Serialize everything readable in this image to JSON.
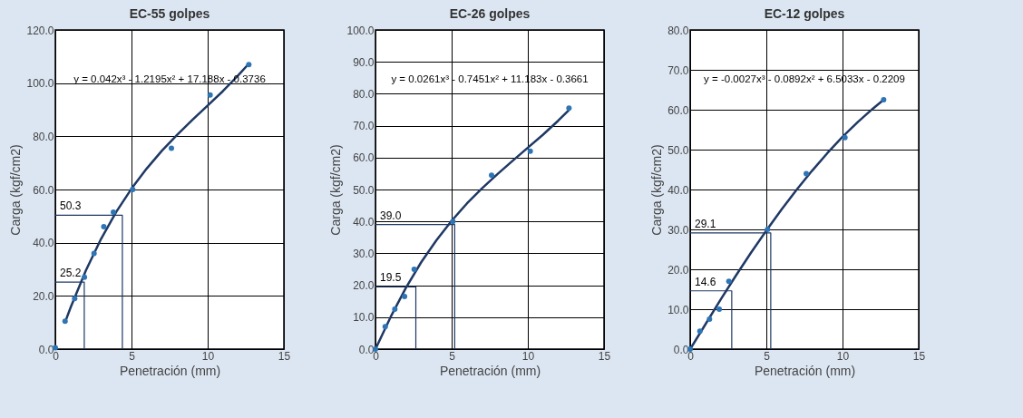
{
  "chart_data": [
    {
      "type": "scatter",
      "title": "EC-55 golpes",
      "xlabel": "Penetración (mm)",
      "ylabel": "Carga (kgf/cm2)",
      "xlim": [
        0,
        15
      ],
      "xticks": [
        0,
        5,
        10,
        15
      ],
      "ylim": [
        0,
        120
      ],
      "yticks": [
        {
          "value": 0,
          "label": "0.0"
        },
        {
          "value": 20,
          "label": "20.0"
        },
        {
          "value": 40,
          "label": "40.0"
        },
        {
          "value": 60,
          "label": "60.0"
        },
        {
          "value": 80,
          "label": "80.0"
        },
        {
          "value": 100,
          "label": "100.0"
        },
        {
          "value": 120,
          "label": "120.0"
        }
      ],
      "grid": true,
      "series": [
        {
          "type": "scatter",
          "marker": "circle",
          "color": "#2e75b6",
          "x": [
            0,
            0.64,
            1.27,
            1.91,
            2.54,
            3.18,
            3.81,
            5.08,
            7.62,
            10.16,
            12.7
          ],
          "values": [
            0.5,
            10.5,
            19,
            27,
            36,
            46,
            51.5,
            60,
            75.5,
            95.5,
            107
          ]
        },
        {
          "type": "line",
          "color": "#1f3864",
          "x": [
            0.64,
            1,
            2,
            3,
            4,
            5,
            6,
            7,
            8,
            9,
            10,
            11,
            12,
            12.7
          ],
          "values": [
            10.1,
            15.6,
            29.5,
            41.4,
            51.6,
            60.3,
            67.9,
            74.6,
            80.6,
            86.2,
            91.6,
            97.0,
            102.9,
            107.3
          ]
        },
        {
          "type": "line",
          "color": "#1f3864",
          "x": [
            0,
            1.9,
            1.9
          ],
          "values": [
            25.2,
            25.2,
            0
          ],
          "value_labels": [
            "25.2",
            null,
            null
          ]
        },
        {
          "type": "line",
          "color": "#1f3864",
          "x": [
            0,
            4.4,
            4.4
          ],
          "values": [
            50.3,
            50.3,
            0
          ],
          "value_labels": [
            "50.3",
            null,
            null
          ]
        }
      ],
      "annotations": [
        "y = 0.042x³ - 1.2195x² + 17.188x - 0.3736"
      ]
    },
    {
      "type": "scatter",
      "title": "EC-26 golpes",
      "xlabel": "Penetración (mm)",
      "ylabel": "Carga (kgf/cm2)",
      "xlim": [
        0,
        15
      ],
      "xticks": [
        0,
        5,
        10,
        15
      ],
      "ylim": [
        0,
        100
      ],
      "yticks": [
        {
          "value": 0,
          "label": "0.0"
        },
        {
          "value": 10,
          "label": "10.0"
        },
        {
          "value": 20,
          "label": "20.0"
        },
        {
          "value": 30,
          "label": "30.0"
        },
        {
          "value": 40,
          "label": "40.0"
        },
        {
          "value": 50,
          "label": "50.0"
        },
        {
          "value": 60,
          "label": "60.0"
        },
        {
          "value": 70,
          "label": "70.0"
        },
        {
          "value": 80,
          "label": "80.0"
        },
        {
          "value": 90,
          "label": "90.0"
        },
        {
          "value": 100,
          "label": "100.0"
        }
      ],
      "grid": true,
      "series": [
        {
          "type": "scatter",
          "marker": "circle",
          "color": "#2e75b6",
          "x": [
            0,
            0.64,
            1.27,
            1.91,
            2.54,
            5.08,
            7.62,
            10.16,
            12.7
          ],
          "values": [
            0,
            7,
            12.5,
            16.5,
            25,
            40,
            54.5,
            62,
            75.5
          ]
        },
        {
          "type": "line",
          "color": "#1f3864",
          "x": [
            0,
            1,
            2,
            3,
            4,
            5,
            6,
            7,
            8,
            9,
            10,
            11,
            12,
            12.7
          ],
          "values": [
            0,
            10.1,
            19.2,
            27.2,
            34.1,
            40.2,
            45.6,
            50.4,
            54.8,
            59.0,
            63.1,
            67.2,
            71.6,
            74.9
          ]
        },
        {
          "type": "line",
          "color": "#1f3864",
          "x": [
            0,
            2.65,
            2.65
          ],
          "values": [
            19.5,
            19.5,
            0
          ],
          "value_labels": [
            "19.5",
            null,
            null
          ]
        },
        {
          "type": "line",
          "color": "#1f3864",
          "x": [
            0,
            5.2,
            5.2
          ],
          "values": [
            39.0,
            39.0,
            0
          ],
          "value_labels": [
            "39.0",
            null,
            null
          ]
        }
      ],
      "annotations": [
        "y = 0.0261x³ - 0.7451x² + 11.183x - 0.3661"
      ]
    },
    {
      "type": "scatter",
      "title": "EC-12 golpes",
      "xlabel": "Penetración (mm)",
      "ylabel": "Carga (kgf/cm2)",
      "xlim": [
        0,
        15
      ],
      "xticks": [
        0,
        5,
        10,
        15
      ],
      "ylim": [
        0,
        80
      ],
      "yticks": [
        {
          "value": 0,
          "label": "0.0"
        },
        {
          "value": 10,
          "label": "10.0"
        },
        {
          "value": 20,
          "label": "20.0"
        },
        {
          "value": 30,
          "label": "30.0"
        },
        {
          "value": 40,
          "label": "40.0"
        },
        {
          "value": 50,
          "label": "50.0"
        },
        {
          "value": 60,
          "label": "60.0"
        },
        {
          "value": 70,
          "label": "70.0"
        },
        {
          "value": 80,
          "label": "80.0"
        }
      ],
      "grid": true,
      "series": [
        {
          "type": "scatter",
          "marker": "circle",
          "color": "#2e75b6",
          "x": [
            0,
            0.64,
            1.27,
            1.91,
            2.54,
            5.08,
            7.62,
            10.16,
            12.7
          ],
          "values": [
            0,
            4.5,
            7.5,
            10,
            17,
            30,
            44,
            53,
            62.5
          ]
        },
        {
          "type": "line",
          "color": "#1f3864",
          "x": [
            0,
            1,
            2,
            3,
            4,
            5,
            6,
            7,
            8,
            9,
            10,
            11,
            12,
            12.7
          ],
          "values": [
            0,
            6.2,
            12.4,
            18.4,
            24.2,
            29.7,
            35.0,
            40.0,
            44.7,
            49.1,
            53.2,
            56.9,
            60.3,
            62.5
          ]
        },
        {
          "type": "line",
          "color": "#1f3864",
          "x": [
            0,
            2.73,
            2.73
          ],
          "values": [
            14.6,
            14.6,
            0
          ],
          "value_labels": [
            "14.6",
            null,
            null
          ]
        },
        {
          "type": "line",
          "color": "#1f3864",
          "x": [
            0,
            5.29,
            5.29
          ],
          "values": [
            29.1,
            29.1,
            0
          ],
          "value_labels": [
            "29.1",
            null,
            null
          ]
        }
      ],
      "annotations": [
        "y = -0.0027x³ - 0.0892x² + 6.5033x - 0.2209"
      ]
    }
  ]
}
